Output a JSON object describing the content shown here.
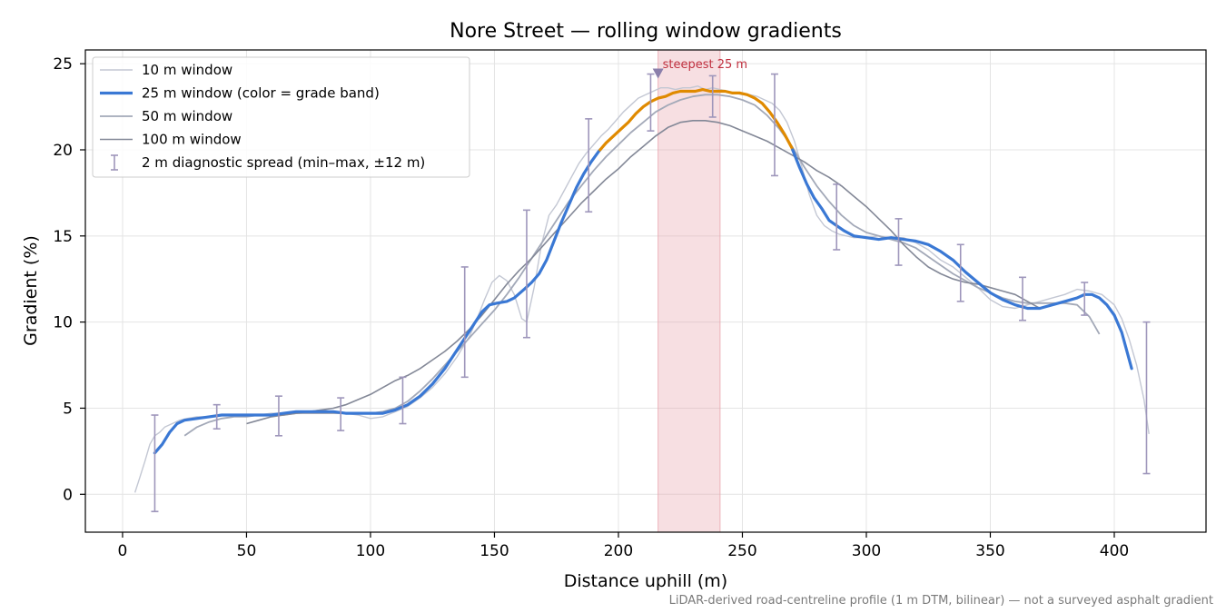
{
  "chart_data": {
    "type": "line",
    "title": "Nore Street — rolling window gradients",
    "xlabel": "Distance uphill (m)",
    "ylabel": "Gradient (%)",
    "xlim": [
      -15,
      437
    ],
    "ylim": [
      -2.2,
      25.8
    ],
    "xticks": [
      0,
      50,
      100,
      150,
      200,
      250,
      300,
      350,
      400
    ],
    "yticks": [
      0,
      5,
      10,
      15,
      20,
      25
    ],
    "grid": true,
    "legend_position": "top-left",
    "footnote": "LiDAR-derived road-centreline profile (1 m DTM, bilinear) — not a surveyed asphalt gradient",
    "highlight_band": {
      "x0": 216,
      "x1": 241,
      "color": "#e8a4ad",
      "label": "steepest 25 m",
      "marker_x": 216,
      "marker_y": 24.4,
      "label_color": "#c0303f"
    },
    "grade_band_threshold": 20,
    "colors": {
      "low_band": "#3a78d4",
      "high_band": "#e08a00",
      "window_10": "#c3c7d3",
      "window_50": "#a3a9b8",
      "window_100": "#838897",
      "errorbar": "#9e96bb"
    },
    "series": [
      {
        "name": "10 m window",
        "style": "thin",
        "x": [
          5,
          7,
          9,
          11,
          13,
          15,
          17,
          20,
          23,
          26,
          30,
          35,
          40,
          45,
          50,
          55,
          60,
          65,
          70,
          75,
          80,
          85,
          90,
          95,
          100,
          105,
          110,
          115,
          120,
          125,
          130,
          135,
          140,
          143,
          146,
          149,
          152,
          155,
          158,
          161,
          163,
          166,
          169,
          172,
          175,
          178,
          181,
          184,
          187,
          190,
          193,
          196,
          199,
          202,
          205,
          208,
          211,
          214,
          217,
          220,
          223,
          226,
          229,
          232,
          235,
          238,
          241,
          244,
          247,
          250,
          253,
          256,
          259,
          262,
          265,
          268,
          271,
          274,
          277,
          280,
          283,
          286,
          289,
          292,
          295,
          300,
          305,
          310,
          315,
          320,
          325,
          330,
          335,
          340,
          345,
          350,
          355,
          360,
          365,
          370,
          375,
          380,
          385,
          390,
          395,
          400,
          403,
          406,
          409,
          412,
          414
        ],
        "y": [
          0.1,
          1.0,
          1.9,
          2.9,
          3.4,
          3.6,
          3.9,
          4.1,
          4.3,
          4.4,
          4.5,
          4.5,
          4.6,
          4.6,
          4.6,
          4.6,
          4.7,
          4.7,
          4.8,
          4.8,
          4.9,
          4.8,
          4.7,
          4.6,
          4.4,
          4.5,
          4.8,
          5.1,
          5.6,
          6.2,
          7.0,
          8.0,
          9.2,
          10.2,
          11.3,
          12.3,
          12.7,
          12.4,
          11.6,
          10.2,
          10.0,
          12.0,
          14.5,
          16.2,
          16.8,
          17.6,
          18.4,
          19.2,
          19.8,
          20.3,
          20.8,
          21.2,
          21.7,
          22.2,
          22.6,
          23.0,
          23.2,
          23.4,
          23.6,
          23.6,
          23.5,
          23.6,
          23.6,
          23.7,
          23.5,
          23.6,
          23.5,
          23.4,
          23.3,
          23.2,
          23.2,
          23.1,
          22.9,
          22.7,
          22.3,
          21.6,
          20.5,
          19.0,
          17.4,
          16.2,
          15.6,
          15.3,
          15.1,
          15.0,
          14.9,
          14.9,
          15.0,
          14.9,
          14.9,
          14.6,
          14.2,
          13.6,
          13.2,
          12.6,
          12.0,
          11.3,
          10.9,
          10.8,
          11.0,
          11.2,
          11.4,
          11.6,
          11.9,
          11.8,
          11.6,
          11.0,
          10.2,
          9.0,
          7.5,
          5.5,
          3.5
        ]
      },
      {
        "name": "25 m window (color = grade band)",
        "style": "thick",
        "x": [
          13,
          16,
          19,
          22,
          25,
          30,
          35,
          40,
          45,
          50,
          55,
          60,
          65,
          70,
          75,
          80,
          85,
          90,
          95,
          100,
          105,
          110,
          115,
          120,
          125,
          130,
          135,
          140,
          145,
          148,
          151,
          155,
          158,
          162,
          165,
          168,
          171,
          174,
          177,
          180,
          183,
          186,
          189,
          192,
          195,
          198,
          201,
          204,
          207,
          210,
          213,
          216,
          219,
          222,
          225,
          228,
          231,
          234,
          237,
          240,
          243,
          246,
          249,
          252,
          255,
          258,
          261,
          264,
          267,
          270,
          273,
          276,
          279,
          282,
          285,
          288,
          291,
          295,
          300,
          305,
          310,
          315,
          320,
          325,
          330,
          335,
          340,
          345,
          350,
          355,
          360,
          365,
          370,
          375,
          380,
          385,
          388,
          391,
          394,
          397,
          400,
          403,
          407
        ],
        "y": [
          2.4,
          2.9,
          3.6,
          4.1,
          4.3,
          4.4,
          4.5,
          4.6,
          4.6,
          4.6,
          4.6,
          4.6,
          4.7,
          4.8,
          4.8,
          4.8,
          4.8,
          4.7,
          4.7,
          4.7,
          4.7,
          4.9,
          5.2,
          5.7,
          6.4,
          7.3,
          8.4,
          9.5,
          10.6,
          11.0,
          11.1,
          11.2,
          11.4,
          11.9,
          12.3,
          12.8,
          13.6,
          14.7,
          15.8,
          16.8,
          17.8,
          18.6,
          19.3,
          19.9,
          20.4,
          20.8,
          21.2,
          21.6,
          22.1,
          22.5,
          22.8,
          23.0,
          23.1,
          23.3,
          23.4,
          23.4,
          23.4,
          23.5,
          23.4,
          23.4,
          23.4,
          23.3,
          23.3,
          23.2,
          23.0,
          22.7,
          22.2,
          21.6,
          20.9,
          20.1,
          19.0,
          18.0,
          17.2,
          16.6,
          15.9,
          15.6,
          15.3,
          15.0,
          14.9,
          14.8,
          14.9,
          14.8,
          14.7,
          14.5,
          14.1,
          13.6,
          12.9,
          12.3,
          11.7,
          11.3,
          11.0,
          10.8,
          10.8,
          11.0,
          11.2,
          11.4,
          11.6,
          11.6,
          11.4,
          11.0,
          10.4,
          9.4,
          7.3
        ]
      },
      {
        "name": "50 m window",
        "style": "medium",
        "x": [
          25,
          30,
          35,
          40,
          45,
          50,
          55,
          60,
          65,
          70,
          75,
          80,
          85,
          90,
          95,
          100,
          105,
          110,
          115,
          120,
          125,
          130,
          135,
          140,
          145,
          150,
          155,
          160,
          165,
          170,
          175,
          180,
          185,
          190,
          195,
          200,
          205,
          210,
          215,
          220,
          225,
          230,
          235,
          240,
          245,
          250,
          255,
          260,
          265,
          270,
          275,
          280,
          285,
          290,
          295,
          300,
          305,
          310,
          315,
          320,
          325,
          330,
          335,
          340,
          345,
          350,
          355,
          360,
          365,
          370,
          375,
          380,
          385,
          390,
          394
        ],
        "y": [
          3.4,
          3.9,
          4.2,
          4.4,
          4.5,
          4.5,
          4.6,
          4.6,
          4.6,
          4.7,
          4.7,
          4.7,
          4.7,
          4.7,
          4.7,
          4.7,
          4.8,
          5.0,
          5.4,
          6.0,
          6.7,
          7.5,
          8.3,
          9.1,
          9.9,
          10.7,
          11.6,
          12.6,
          13.7,
          14.8,
          15.9,
          17.0,
          17.9,
          18.8,
          19.6,
          20.3,
          21.0,
          21.6,
          22.2,
          22.6,
          22.9,
          23.1,
          23.2,
          23.2,
          23.1,
          22.9,
          22.6,
          22.0,
          21.2,
          20.2,
          19.0,
          17.9,
          17.0,
          16.2,
          15.6,
          15.2,
          15.0,
          14.8,
          14.6,
          14.3,
          13.8,
          13.3,
          12.8,
          12.4,
          12.0,
          11.7,
          11.4,
          11.2,
          11.1,
          11.1,
          11.1,
          11.1,
          11.0,
          10.3,
          9.3
        ]
      },
      {
        "name": "100 m window",
        "style": "dark",
        "x": [
          50,
          55,
          60,
          65,
          70,
          75,
          80,
          85,
          90,
          95,
          100,
          105,
          110,
          115,
          120,
          125,
          130,
          135,
          140,
          145,
          150,
          155,
          160,
          165,
          170,
          175,
          180,
          185,
          190,
          195,
          200,
          205,
          210,
          215,
          220,
          225,
          230,
          235,
          240,
          245,
          250,
          255,
          260,
          265,
          270,
          275,
          280,
          285,
          290,
          295,
          300,
          305,
          310,
          315,
          320,
          325,
          330,
          335,
          340,
          345,
          350,
          355,
          360,
          365,
          370
        ],
        "y": [
          4.1,
          4.3,
          4.5,
          4.6,
          4.7,
          4.8,
          4.9,
          5.0,
          5.2,
          5.5,
          5.8,
          6.2,
          6.6,
          6.9,
          7.3,
          7.8,
          8.3,
          8.9,
          9.6,
          10.4,
          11.3,
          12.2,
          13.0,
          13.7,
          14.5,
          15.3,
          16.1,
          16.9,
          17.6,
          18.3,
          18.9,
          19.6,
          20.2,
          20.8,
          21.3,
          21.6,
          21.7,
          21.7,
          21.6,
          21.4,
          21.1,
          20.8,
          20.5,
          20.1,
          19.7,
          19.3,
          18.8,
          18.4,
          17.9,
          17.3,
          16.7,
          16.0,
          15.3,
          14.5,
          13.8,
          13.2,
          12.8,
          12.5,
          12.3,
          12.2,
          12.0,
          11.8,
          11.6,
          11.2,
          10.8
        ]
      }
    ],
    "errorbars": {
      "name": "2 m diagnostic spread (min–max, ±12 m)",
      "x": [
        13,
        38,
        63,
        88,
        113,
        138,
        163,
        188,
        213,
        238,
        263,
        288,
        313,
        338,
        363,
        388,
        413
      ],
      "ymin": [
        -1.0,
        3.8,
        3.4,
        3.7,
        4.1,
        6.8,
        9.1,
        16.4,
        21.1,
        21.9,
        18.5,
        14.2,
        13.3,
        11.2,
        10.1,
        10.4,
        1.2
      ],
      "ymax": [
        4.6,
        5.2,
        5.7,
        5.6,
        6.8,
        13.2,
        16.5,
        21.8,
        24.4,
        24.3,
        24.4,
        18.0,
        16.0,
        14.5,
        12.6,
        12.3,
        10.0
      ]
    }
  }
}
